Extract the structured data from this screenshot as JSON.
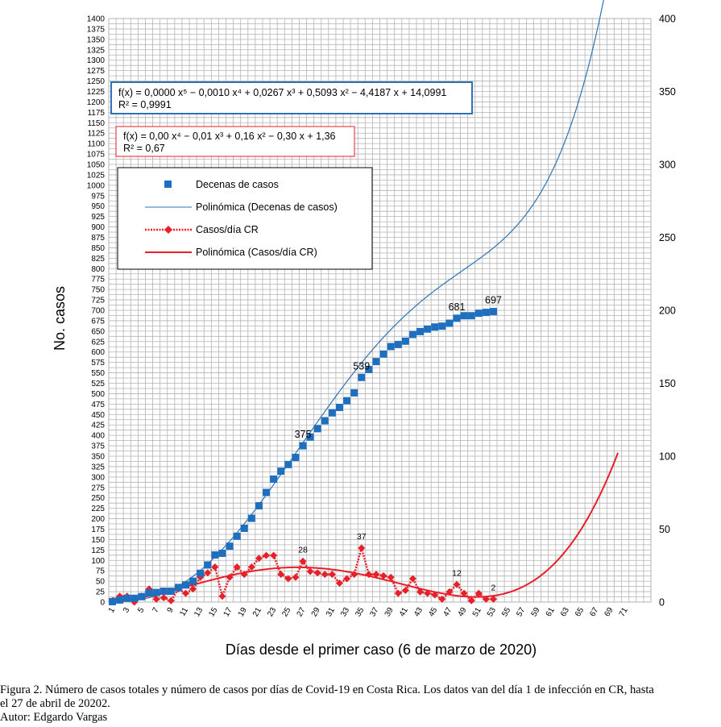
{
  "chart_data": {
    "type": "scatter+line",
    "y_left": {
      "label": "No. casos",
      "min": 0,
      "max": 1400,
      "tick_step": 25,
      "minor_step": 12.5
    },
    "y_right": {
      "min": 0,
      "max": 400,
      "tick_step": 50
    },
    "x_axis": {
      "label": "Días desde el primer caso (6 de marzo de 2020)",
      "min": 1,
      "max": 71,
      "label_step": 2
    },
    "grid": true,
    "series": [
      {
        "name": "Decenas de casos",
        "axis": "left",
        "marker": "square",
        "color": "#1f6fbf",
        "x": [
          1,
          2,
          3,
          4,
          5,
          6,
          7,
          8,
          9,
          10,
          11,
          12,
          13,
          14,
          15,
          16,
          17,
          18,
          19,
          20,
          21,
          22,
          23,
          24,
          25,
          26,
          27,
          28,
          29,
          30,
          31,
          32,
          33,
          34,
          35,
          36,
          37,
          38,
          39,
          40,
          41,
          42,
          43,
          44,
          45,
          46,
          47,
          48,
          49,
          50,
          51,
          52,
          53
        ],
        "values": [
          1,
          5,
          9,
          9,
          13,
          22,
          23,
          26,
          26,
          35,
          41,
          50,
          69,
          89,
          113,
          117,
          134,
          158,
          177,
          201,
          231,
          263,
          295,
          314,
          330,
          347,
          375,
          396,
          416,
          435,
          454,
          467,
          483,
          502,
          539,
          558,
          577,
          595,
          613,
          618,
          626,
          642,
          649,
          655,
          660,
          662,
          669,
          681,
          687,
          687,
          693,
          695,
          697
        ]
      },
      {
        "name": "Polinómica (Decenas de casos)",
        "axis": "left",
        "kind": "trendline",
        "color": "#2e74b5",
        "equation": "f(x) = 0,0000 x⁵ − 0,0010 x⁴ + 0,0267 x³ + 0,5093 x² − 4,4187 x + 14,0991",
        "r2": "R² = 0,9991",
        "coefficients": [
          14.0991,
          -4.4187,
          0.5093,
          0.0267,
          -0.001,
          8.5e-06
        ]
      },
      {
        "name": "Casos/día CR",
        "axis": "right",
        "marker": "diamond",
        "line": "dotted",
        "color": "#e8202a",
        "x": [
          1,
          2,
          3,
          4,
          5,
          6,
          7,
          8,
          9,
          10,
          11,
          12,
          13,
          14,
          15,
          16,
          17,
          18,
          19,
          20,
          21,
          22,
          23,
          24,
          25,
          26,
          27,
          28,
          29,
          30,
          31,
          32,
          33,
          34,
          35,
          36,
          37,
          38,
          39,
          40,
          41,
          42,
          43,
          44,
          45,
          46,
          47,
          48,
          49,
          50,
          51,
          52,
          53
        ],
        "values": [
          1,
          4,
          4,
          0,
          4,
          9,
          2,
          3,
          1,
          9,
          6,
          9,
          17,
          20,
          24,
          4,
          17,
          24,
          19,
          24,
          30,
          32,
          32,
          19,
          16,
          17,
          28,
          21,
          20,
          19,
          19,
          13,
          16,
          19,
          37,
          19,
          19,
          18,
          17,
          6,
          8,
          16,
          7,
          6,
          5,
          2,
          7,
          12,
          6,
          1,
          6,
          2,
          2
        ]
      },
      {
        "name": "Polinómica (Casos/día CR)",
        "axis": "right",
        "kind": "trendline",
        "color": "#e8202a",
        "equation": "f(x) = 0,00 x⁴ − 0,01 x³ + 0,16 x² − 0,30 x + 1,36",
        "r2": "R² = 0,67"
      }
    ],
    "point_labels": [
      {
        "series": "Decenas de casos",
        "x": 27,
        "text": "375"
      },
      {
        "series": "Decenas de casos",
        "x": 35,
        "text": "539"
      },
      {
        "series": "Decenas de casos",
        "x": 48,
        "text": "681"
      },
      {
        "series": "Decenas de casos",
        "x": 53,
        "text": "697"
      },
      {
        "series": "Casos/día CR",
        "x": 27,
        "text": "28"
      },
      {
        "series": "Casos/día CR",
        "x": 35,
        "text": "37"
      },
      {
        "series": "Casos/día CR",
        "x": 48,
        "text": "12"
      },
      {
        "series": "Casos/día CR",
        "x": 53,
        "text": "2"
      }
    ],
    "legend": {
      "position": "top-left",
      "entries": [
        "Decenas de casos",
        "Polinómica (Decenas de casos)",
        "Casos/día CR",
        "Polinómica (Casos/día CR)"
      ]
    }
  },
  "caption": {
    "line1": "Figura 2. Número de casos totales y número de casos por días de Covid-19 en Costa Rica. Los datos van del día 1 de infección en CR, hasta",
    "line2": "el 27 de abril de 20202.",
    "line3": "Autor: Edgardo Vargas"
  }
}
